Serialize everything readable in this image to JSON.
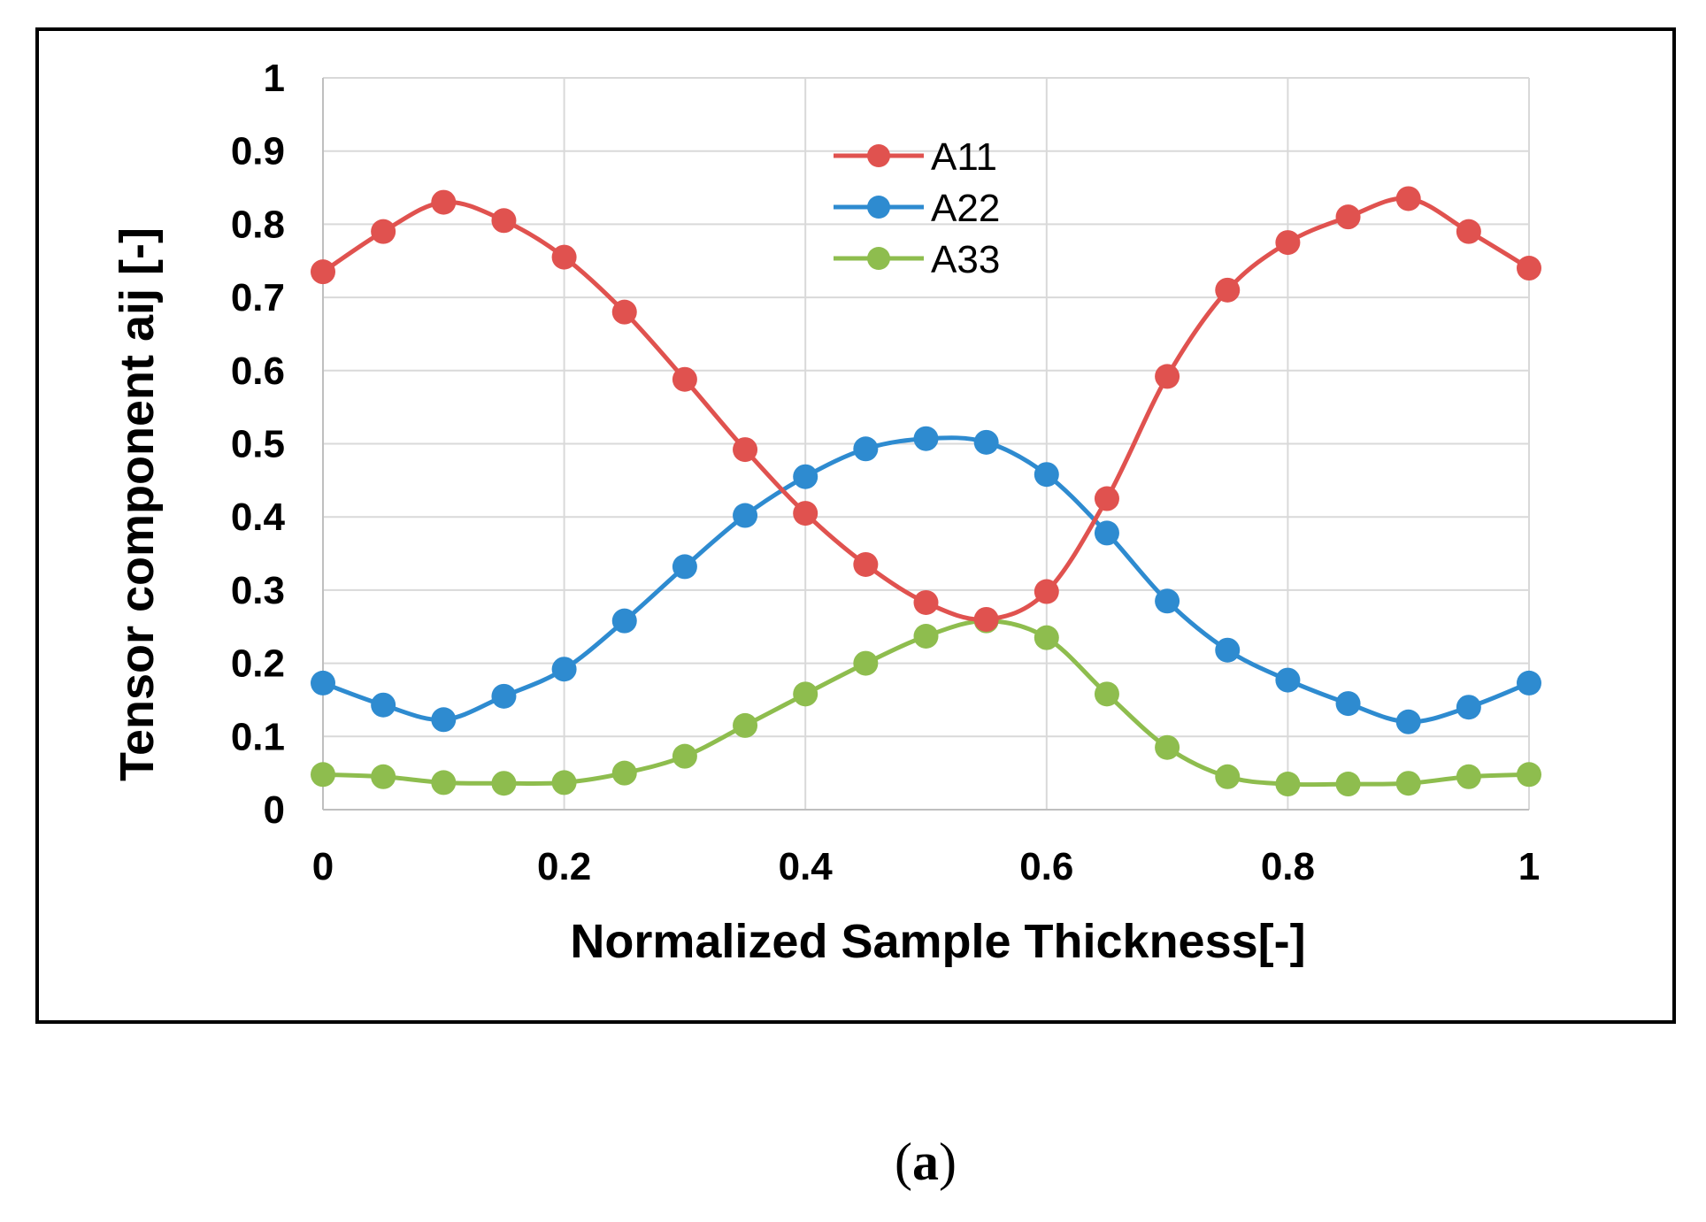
{
  "chart_data": {
    "type": "line",
    "title": "",
    "xlabel": "Normalized Sample Thickness[-]",
    "ylabel": "Tensor component aij [-]",
    "xlim": [
      0,
      1
    ],
    "ylim": [
      0,
      1
    ],
    "grid": true,
    "legend_position": "top-center",
    "x_ticks": [
      0,
      0.2,
      0.4,
      0.6,
      0.8,
      1
    ],
    "x_tick_labels": [
      "0",
      "0.2",
      "0.4",
      "0.6",
      "0.8",
      "1"
    ],
    "y_ticks": [
      0,
      0.1,
      0.2,
      0.3,
      0.4,
      0.5,
      0.6,
      0.7,
      0.8,
      0.9,
      1
    ],
    "y_tick_labels": [
      "0",
      "0.1",
      "0.2",
      "0.3",
      "0.4",
      "0.5",
      "0.6",
      "0.7",
      "0.8",
      "0.9",
      "1"
    ],
    "x": [
      0,
      0.05,
      0.1,
      0.15,
      0.2,
      0.25,
      0.3,
      0.35,
      0.4,
      0.45,
      0.5,
      0.55,
      0.6,
      0.65,
      0.7,
      0.75,
      0.8,
      0.85,
      0.9,
      0.95,
      1
    ],
    "series": [
      {
        "name": "A11",
        "color": "#e0524f",
        "values": [
          0.735,
          0.79,
          0.83,
          0.805,
          0.755,
          0.68,
          0.588,
          0.492,
          0.405,
          0.335,
          0.283,
          0.26,
          0.298,
          0.425,
          0.592,
          0.71,
          0.775,
          0.81,
          0.835,
          0.79,
          0.74
        ]
      },
      {
        "name": "A22",
        "color": "#2e8bd0",
        "values": [
          0.173,
          0.143,
          0.123,
          0.155,
          0.192,
          0.258,
          0.332,
          0.402,
          0.455,
          0.493,
          0.507,
          0.502,
          0.458,
          0.378,
          0.285,
          0.218,
          0.177,
          0.145,
          0.12,
          0.14,
          0.173
        ]
      },
      {
        "name": "A33",
        "color": "#8ebd4e",
        "values": [
          0.048,
          0.045,
          0.037,
          0.036,
          0.037,
          0.05,
          0.073,
          0.115,
          0.158,
          0.2,
          0.237,
          0.258,
          0.235,
          0.158,
          0.085,
          0.045,
          0.035,
          0.035,
          0.036,
          0.045,
          0.048
        ]
      }
    ]
  },
  "caption": {
    "open": "(",
    "label": "a",
    "close": ")"
  }
}
